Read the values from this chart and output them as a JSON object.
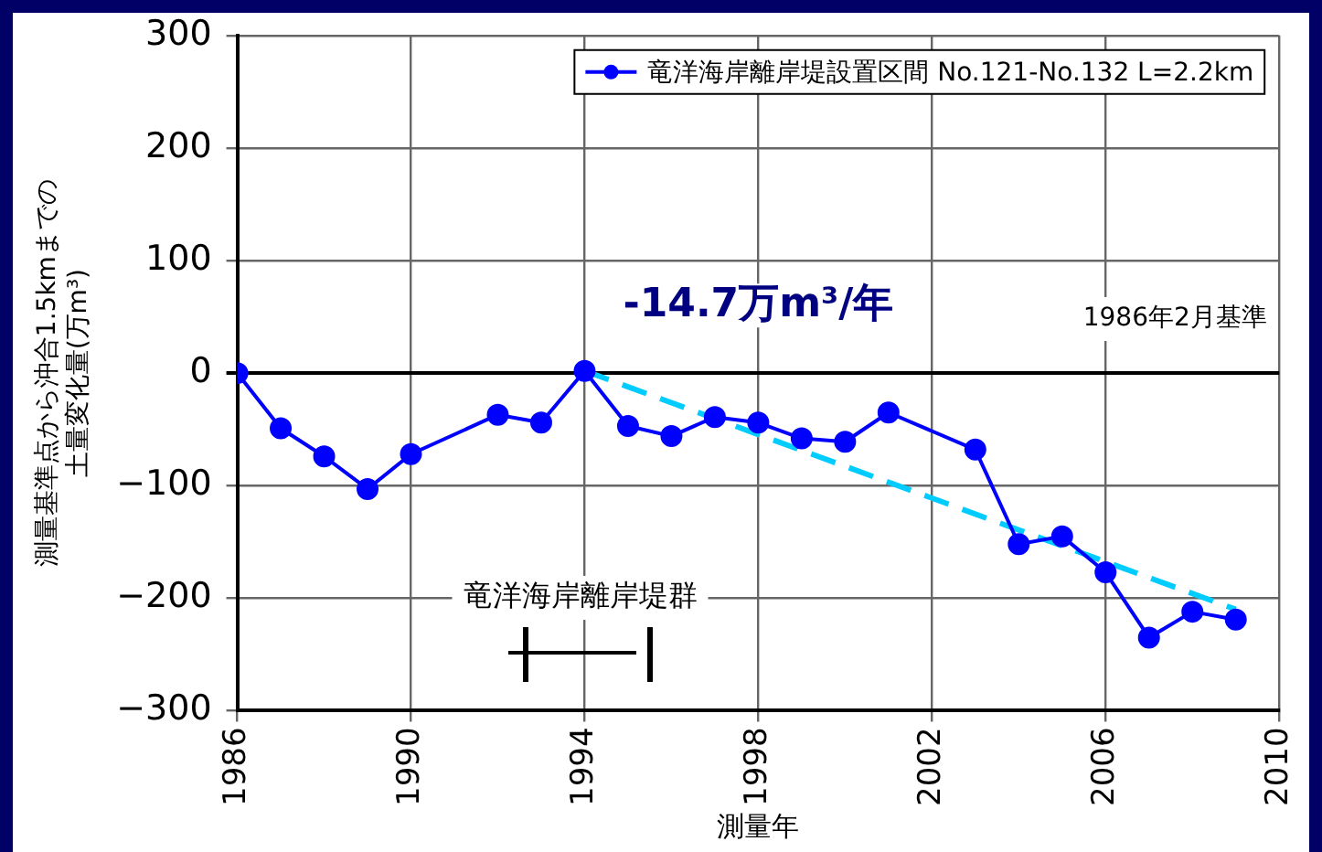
{
  "chart_data": {
    "type": "line",
    "ylabel": [
      "測量基準点から沖合1.5kmまでの",
      "土量変化量(万m³)"
    ],
    "xlabel": "測量年",
    "annotations": [
      "-14.7万m³/年",
      "1986年2月基準",
      "竜洋海岸離岸堤群"
    ],
    "x": [
      1986,
      1987,
      1988,
      1989,
      1990,
      1992,
      1993,
      1994,
      1995,
      1996,
      1997,
      1998,
      1999,
      2000,
      2001,
      2003,
      2004,
      2005,
      2006,
      2007,
      2008,
      2009
    ],
    "series": [
      {
        "name": "竜洋海岸離岸堤設置区間 No.121-No.132 L=2.2km",
        "color": "#0000ff",
        "values": [
          0,
          -49,
          -74,
          -103,
          -72,
          -37,
          -44,
          2,
          -47,
          -56,
          -39,
          -44,
          -58,
          -61,
          -35,
          -68,
          -152,
          -145,
          -177,
          -235,
          -212,
          -219
        ]
      },
      {
        "type": "line",
        "x": [
          1994,
          2009
        ],
        "values": [
          2,
          -210
        ],
        "color": "#00ccff",
        "line_style": "dashed",
        "marker": "none"
      }
    ],
    "xlim": [
      1986,
      2010
    ],
    "xticks": [
      1986,
      1990,
      1994,
      1998,
      2002,
      2006,
      2010
    ],
    "ylim": [
      -300,
      300
    ],
    "yticks": [
      -300,
      -200,
      -100,
      0,
      100,
      200,
      300
    ],
    "grid": true,
    "legend": "top right",
    "marker": "circle",
    "line_style": "solid"
  }
}
